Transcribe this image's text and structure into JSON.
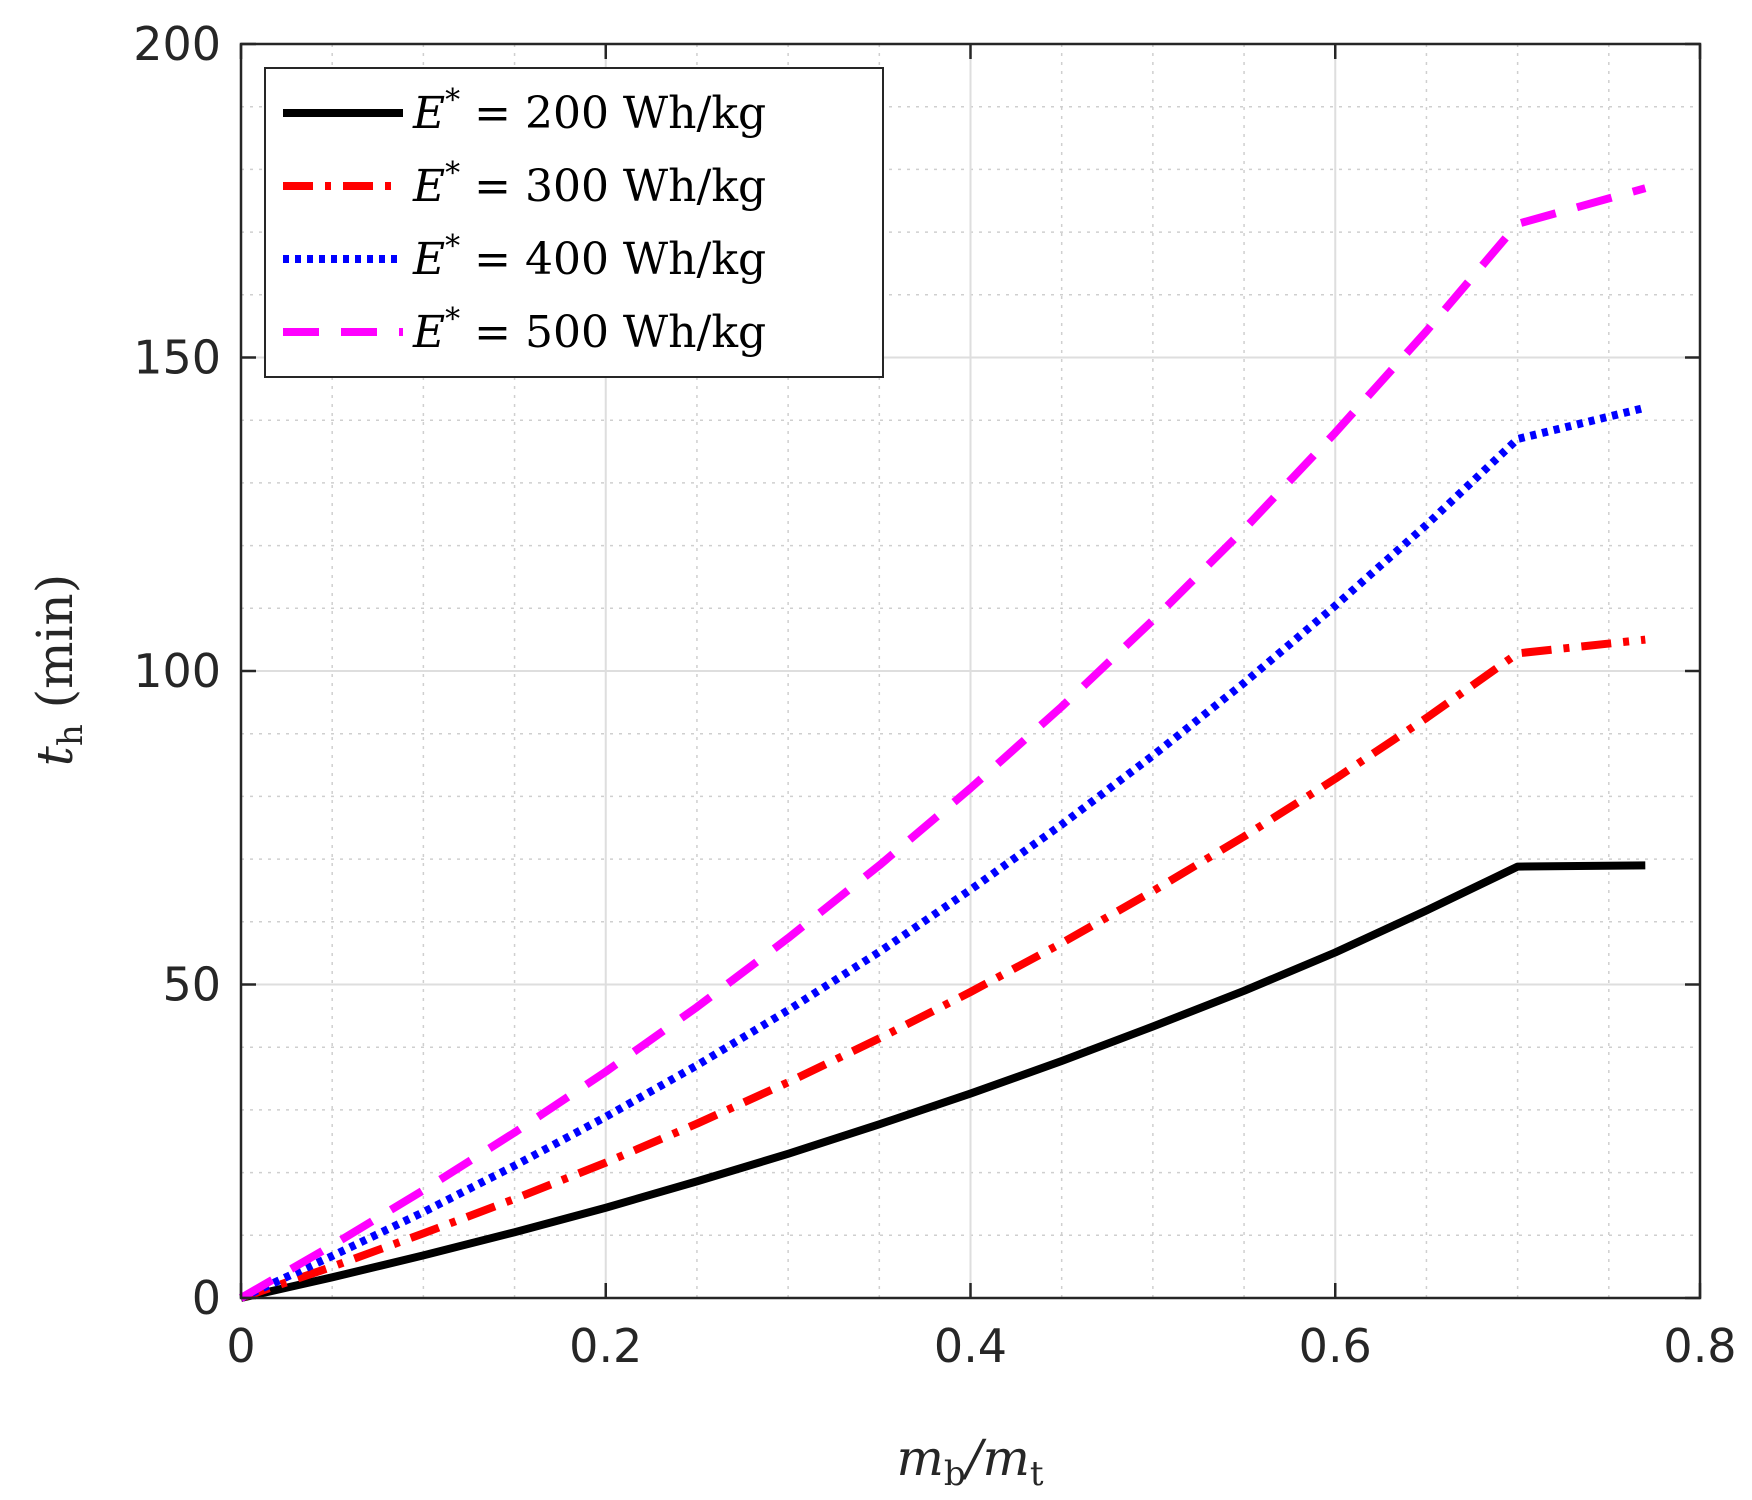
{
  "chart_data": {
    "type": "line",
    "title": "",
    "xlabel": "m_b/m_t",
    "ylabel": "t_h (min)",
    "xlim": [
      0,
      0.8
    ],
    "ylim": [
      0,
      200
    ],
    "xticks": [
      0,
      0.2,
      0.4,
      0.6,
      0.8
    ],
    "xtick_labels": [
      "0",
      "0.2",
      "0.4",
      "0.6",
      "0.8"
    ],
    "yticks": [
      0,
      50,
      100,
      150,
      200
    ],
    "ytick_labels": [
      "0",
      "50",
      "100",
      "150",
      "200"
    ],
    "grid": true,
    "minor_grid": true,
    "legend_position": "top-left",
    "x": [
      0,
      0.05,
      0.1,
      0.15,
      0.2,
      0.25,
      0.3,
      0.35,
      0.4,
      0.45,
      0.5,
      0.55,
      0.6,
      0.65,
      0.7,
      0.77
    ],
    "series": [
      {
        "name": "E* = 200 Wh/kg",
        "label_math": "E",
        "label_sup": "*",
        "label_rest": " = 200 Wh/kg",
        "color": "#000000",
        "style": "solid",
        "values": [
          0,
          3.3,
          6.8,
          10.5,
          14.4,
          18.6,
          23.0,
          27.7,
          32.6,
          37.8,
          43.3,
          49.0,
          55.1,
          61.8,
          68.8,
          69.0
        ]
      },
      {
        "name": "E* = 300 Wh/kg",
        "label_math": "E",
        "label_sup": "*",
        "label_rest": " = 300 Wh/kg",
        "color": "#ff0000",
        "style": "dashdot",
        "values": [
          0,
          5.0,
          10.3,
          15.8,
          21.6,
          27.8,
          34.4,
          41.4,
          48.8,
          56.6,
          64.9,
          73.6,
          82.8,
          92.5,
          102.8,
          105.0
        ]
      },
      {
        "name": "E* = 400 Wh/kg",
        "label_math": "E",
        "label_sup": "*",
        "label_rest": " = 400 Wh/kg",
        "color": "#0000ff",
        "style": "dotted",
        "values": [
          0,
          6.7,
          13.7,
          21.1,
          28.9,
          37.1,
          45.9,
          55.2,
          65.1,
          75.5,
          86.5,
          98.1,
          110.4,
          123.3,
          137.0,
          142.0
        ]
      },
      {
        "name": "E* = 500 Wh/kg",
        "label_math": "E",
        "label_sup": "*",
        "label_rest": " = 500 Wh/kg",
        "color": "#ff00ff",
        "style": "dashed",
        "values": [
          0,
          8.4,
          17.2,
          26.4,
          36.1,
          46.4,
          57.4,
          69.0,
          81.3,
          94.3,
          108.1,
          122.6,
          138.0,
          154.2,
          171.3,
          177.0
        ]
      }
    ]
  }
}
